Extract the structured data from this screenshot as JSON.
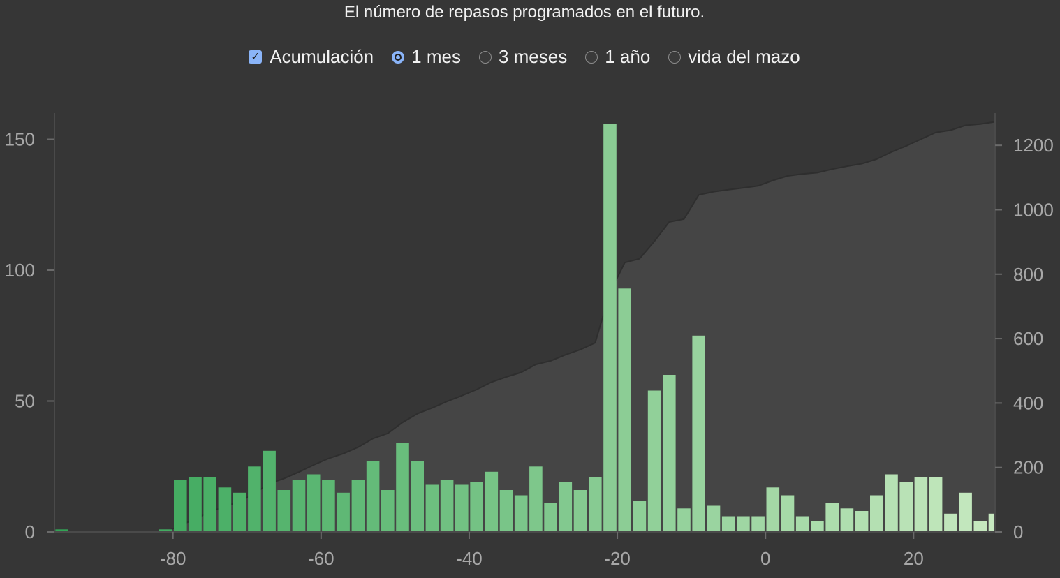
{
  "header": {
    "subtitle": "El número de repasos programados en el futuro."
  },
  "controls": {
    "cumulative_label": "Acumulación",
    "cumulative_checked": true,
    "ranges": [
      {
        "label": "1 mes",
        "selected": true
      },
      {
        "label": "3 meses",
        "selected": false
      },
      {
        "label": "1 año",
        "selected": false
      },
      {
        "label": "vida del mazo",
        "selected": false
      }
    ]
  },
  "colors": {
    "background": "#363636",
    "accent": "#8ab4f8",
    "bar_dark": "#31a354",
    "bar_light": "#c7e9c0",
    "cumulative_fill": "#454545",
    "axis_text": "#a8a8a8"
  },
  "chart_data": {
    "type": "bar",
    "title": "El número de repasos programados en el futuro.",
    "xlabel": "",
    "ylabel": "",
    "xlim": [
      -96,
      31
    ],
    "ylim": [
      0,
      160
    ],
    "y2lim": [
      0,
      1300
    ],
    "x_ticks": [
      -80,
      -60,
      -40,
      -20,
      0,
      20
    ],
    "y_ticks": [
      0,
      50,
      100,
      150
    ],
    "y2_ticks": [
      0,
      200,
      400,
      600,
      800,
      1000,
      1200
    ],
    "grid": false,
    "series": [
      {
        "type": "bar",
        "axis": "left",
        "x": [
          -95,
          -81,
          -79,
          -77,
          -75,
          -73,
          -71,
          -69,
          -67,
          -65,
          -63,
          -61,
          -59,
          -57,
          -55,
          -53,
          -51,
          -49,
          -47,
          -45,
          -43,
          -41,
          -39,
          -37,
          -35,
          -33,
          -31,
          -29,
          -27,
          -25,
          -23,
          -21,
          -19,
          -17,
          -15,
          -13,
          -11,
          -9,
          -7,
          -5,
          -3,
          -1,
          1,
          3,
          5,
          7,
          9,
          11,
          13,
          15,
          17,
          19,
          21,
          23,
          25,
          27,
          29,
          31
        ],
        "values": [
          1,
          1,
          20,
          21,
          21,
          17,
          15,
          25,
          31,
          16,
          20,
          22,
          20,
          15,
          20,
          27,
          16,
          34,
          27,
          18,
          20,
          18,
          19,
          23,
          16,
          14,
          25,
          11,
          19,
          16,
          21,
          156,
          93,
          12,
          54,
          60,
          9,
          75,
          10,
          6,
          6,
          6,
          17,
          14,
          6,
          4,
          11,
          9,
          8,
          14,
          22,
          19,
          21,
          21,
          7,
          15,
          4,
          7
        ]
      },
      {
        "type": "area",
        "axis": "right",
        "x": [
          -81,
          -79,
          -77,
          -75,
          -73,
          -71,
          -69,
          -67,
          -65,
          -63,
          -61,
          -59,
          -57,
          -55,
          -53,
          -51,
          -49,
          -47,
          -45,
          -43,
          -41,
          -39,
          -37,
          -35,
          -33,
          -31,
          -29,
          -27,
          -25,
          -23,
          -21,
          -19,
          -17,
          -15,
          -13,
          -11,
          -9,
          -7,
          -5,
          -3,
          -1,
          1,
          3,
          5,
          7,
          9,
          11,
          13,
          15,
          17,
          19,
          21,
          23,
          25,
          27,
          29,
          31
        ],
        "values": [
          0,
          20,
          41,
          62,
          79,
          94,
          119,
          150,
          166,
          186,
          208,
          228,
          243,
          263,
          290,
          306,
          340,
          367,
          385,
          405,
          423,
          442,
          465,
          481,
          495,
          520,
          531,
          550,
          566,
          587,
          743,
          836,
          848,
          902,
          962,
          971,
          1046,
          1056,
          1062,
          1068,
          1074,
          1091,
          1105,
          1111,
          1115,
          1126,
          1135,
          1143,
          1157,
          1179,
          1198,
          1219,
          1240,
          1247,
          1262,
          1266,
          1273
        ]
      }
    ]
  }
}
